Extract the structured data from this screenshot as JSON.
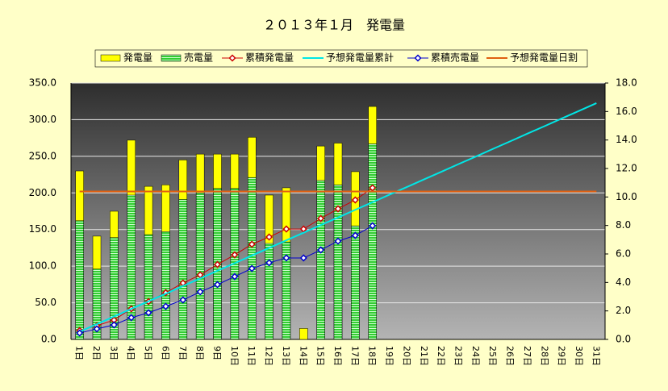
{
  "chart_data": {
    "type": "bar",
    "title": "２０１３年１月　発電量",
    "categories": [
      "1日",
      "2日",
      "3日",
      "4日",
      "5日",
      "6日",
      "7日",
      "8日",
      "9日",
      "10日",
      "11日",
      "12日",
      "13日",
      "14日",
      "15日",
      "16日",
      "17日",
      "18日",
      "19日",
      "20日",
      "21日",
      "22日",
      "23日",
      "24日",
      "25日",
      "26日",
      "27日",
      "28日",
      "29日",
      "30日",
      "31日"
    ],
    "series": [
      {
        "name": "発電量",
        "type": "bar",
        "color": "#ffff00",
        "values": [
          230,
          141,
          175,
          272,
          209,
          211,
          245,
          253,
          253,
          253,
          276,
          197,
          207,
          15,
          264,
          268,
          229,
          318,
          null,
          null,
          null,
          null,
          null,
          null,
          null,
          null,
          null,
          null,
          null,
          null,
          null
        ]
      },
      {
        "name": "売電量",
        "type": "bar",
        "color": "#33cc33",
        "values": [
          162,
          96,
          139,
          197,
          143,
          147,
          191,
          200,
          206,
          206,
          221,
          131,
          133,
          null,
          217,
          211,
          155,
          267,
          null,
          null,
          null,
          null,
          null,
          null,
          null,
          null,
          null,
          null,
          null,
          null,
          null
        ]
      },
      {
        "name": "累積発電量",
        "type": "line",
        "axis": "y2",
        "color": "#cc0000",
        "marker": true,
        "values": [
          0.62,
          0.96,
          1.36,
          2.15,
          2.66,
          3.28,
          3.96,
          4.53,
          5.26,
          5.94,
          6.68,
          7.19,
          7.75,
          7.75,
          8.49,
          9.17,
          9.79,
          10.64,
          null,
          null,
          null,
          null,
          null,
          null,
          null,
          null,
          null,
          null,
          null,
          null,
          null
        ]
      },
      {
        "name": "予想発電量累計",
        "type": "line",
        "axis": "y2",
        "color": "#00e6e6",
        "marker": false,
        "values": [
          0.54,
          1.07,
          1.61,
          2.14,
          2.68,
          3.21,
          3.75,
          4.28,
          4.82,
          5.35,
          5.89,
          6.42,
          6.96,
          7.49,
          8.03,
          8.56,
          9.1,
          9.63,
          10.17,
          10.7,
          11.24,
          11.77,
          12.31,
          12.84,
          13.38,
          13.91,
          14.45,
          14.98,
          15.52,
          16.05,
          16.59
        ]
      },
      {
        "name": "累積売電量",
        "type": "line",
        "axis": "y2",
        "color": "#0000cc",
        "marker": true,
        "values": [
          0.45,
          0.74,
          1.02,
          1.53,
          1.87,
          2.32,
          2.77,
          3.34,
          3.85,
          4.41,
          4.98,
          5.38,
          5.72,
          5.72,
          6.28,
          6.9,
          7.3,
          7.98,
          null,
          null,
          null,
          null,
          null,
          null,
          null,
          null,
          null,
          null,
          null,
          null,
          null
        ]
      },
      {
        "name": "予想発電量日割",
        "type": "line",
        "color": "#e06010",
        "marker": false,
        "values": [
          202,
          202,
          202,
          202,
          202,
          202,
          202,
          202,
          202,
          202,
          202,
          202,
          202,
          202,
          202,
          202,
          202,
          202,
          202,
          202,
          202,
          202,
          202,
          202,
          202,
          202,
          202,
          202,
          202,
          202,
          202
        ]
      }
    ],
    "ylim": [
      0,
      350
    ],
    "yticks": [
      {
        "value": 0,
        "label": "0.0"
      },
      {
        "value": 50,
        "label": "50.0"
      },
      {
        "value": 100,
        "label": "100.0"
      },
      {
        "value": 150,
        "label": "150.0"
      },
      {
        "value": 200,
        "label": "200.0"
      },
      {
        "value": 250,
        "label": "250.0"
      },
      {
        "value": 300,
        "label": "300.0"
      },
      {
        "value": 350,
        "label": "350.0"
      }
    ],
    "y2lim": [
      0,
      18
    ],
    "y2ticks": [
      {
        "value": 0,
        "label": "0.0"
      },
      {
        "value": 2,
        "label": "2.0"
      },
      {
        "value": 4,
        "label": "4.0"
      },
      {
        "value": 6,
        "label": "6.0"
      },
      {
        "value": 8,
        "label": "8.0"
      },
      {
        "value": 10,
        "label": "10.0"
      },
      {
        "value": 12,
        "label": "12.0"
      },
      {
        "value": 14,
        "label": "14.0"
      },
      {
        "value": 16,
        "label": "16.0"
      },
      {
        "value": 18,
        "label": "18.0"
      }
    ],
    "grid": true
  }
}
